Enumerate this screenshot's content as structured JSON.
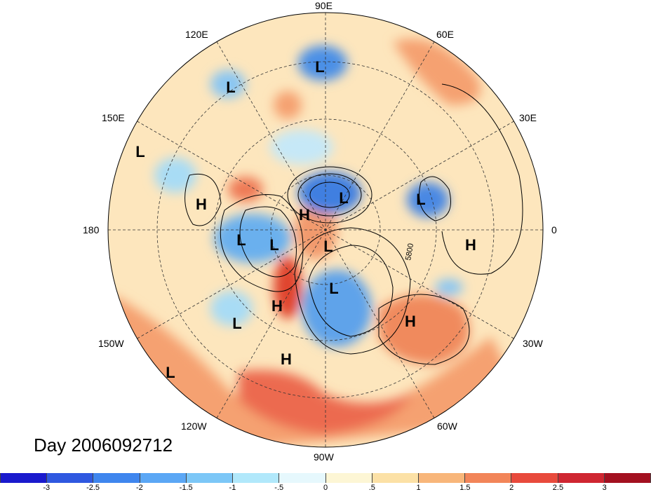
{
  "map": {
    "projection": "north polar stereographic",
    "longitude_labels": {
      "n90E": "90E",
      "n60E": "60E",
      "n120E": "120E",
      "n30E": "30E",
      "n150E": "150E",
      "n180": "180",
      "n0": "0",
      "n150W": "150W",
      "n30W": "30W",
      "n120W": "120W",
      "n60W": "60W",
      "n90W": "90W"
    },
    "contour_label": "5800",
    "pressure_centers": [
      {
        "label": "L",
        "region": "Siberia"
      },
      {
        "label": "L",
        "region": "East Asia"
      },
      {
        "label": "L",
        "region": "North Pacific west"
      },
      {
        "label": "H",
        "region": "Bering Sea"
      },
      {
        "label": "L",
        "region": "Gulf of Alaska"
      },
      {
        "label": "L",
        "region": "Alaska"
      },
      {
        "label": "H",
        "region": "Arctic Ocean"
      },
      {
        "label": "L",
        "region": "Arctic"
      },
      {
        "label": "L",
        "region": "Kara Sea"
      },
      {
        "label": "L",
        "region": "Scandinavia"
      },
      {
        "label": "H",
        "region": "North Africa"
      },
      {
        "label": "L",
        "region": "Hudson Bay"
      },
      {
        "label": "H",
        "region": "Western Canada"
      },
      {
        "label": "L",
        "region": "East Pacific"
      },
      {
        "label": "H",
        "region": "Mid Atlantic"
      },
      {
        "label": "H",
        "region": "Mexico"
      },
      {
        "label": "L",
        "region": "Subtropical Pacific"
      }
    ],
    "anomaly_colors": {
      "strong_positive": "#d7301f",
      "positive": "#f4a582",
      "weak_positive": "#fde0b0",
      "weak_negative": "#c6e8f7",
      "negative": "#6baed6",
      "strong_negative": "#2156d8"
    }
  },
  "date_label": "Day 2006092712",
  "colorbar": {
    "ticks": [
      "-3",
      "-2.5",
      "-2",
      "-1.5",
      "-1",
      "-.5",
      "0",
      ".5",
      "1",
      "1.5",
      "2",
      "2.5",
      "3"
    ],
    "colors": [
      "#1a1acd",
      "#2f58e0",
      "#3f86ee",
      "#5ba7f5",
      "#7cc7f7",
      "#b1e8fb",
      "#e6f8fd",
      "#fdf6d5",
      "#fce1a6",
      "#f8b67a",
      "#f28559",
      "#e84a3c",
      "#cf2631",
      "#a31020"
    ]
  }
}
